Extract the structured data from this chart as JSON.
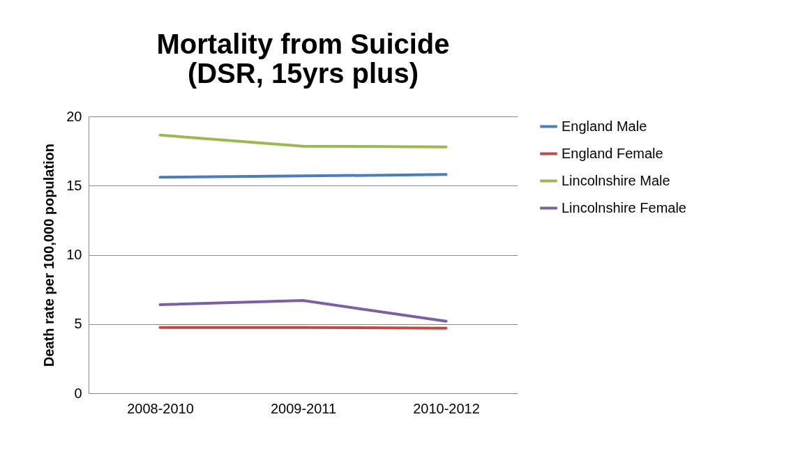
{
  "chart_data": {
    "type": "line",
    "title": [
      "Mortality from Suicide",
      "(DSR, 15yrs plus)"
    ],
    "ylabel": "Death rate per 100,000 population",
    "categories": [
      "2008-2010",
      "2009-2011",
      "2010-2012"
    ],
    "series": [
      {
        "name": "England Male",
        "color": "#4a7ebb",
        "values": [
          15.6,
          15.7,
          15.8
        ]
      },
      {
        "name": "England Female",
        "color": "#be4b48",
        "values": [
          4.75,
          4.75,
          4.7
        ]
      },
      {
        "name": "Lincolnshire Male",
        "color": "#98b954",
        "values": [
          18.65,
          17.85,
          17.8
        ]
      },
      {
        "name": "Lincolnshire Female",
        "color": "#7d60a0",
        "values": [
          6.4,
          6.7,
          5.2
        ]
      }
    ],
    "ylim": [
      0,
      20
    ],
    "yticks": [
      0,
      5,
      10,
      15,
      20
    ],
    "grid": "y",
    "legend": "right",
    "marker": "none",
    "line_style": "solid"
  }
}
